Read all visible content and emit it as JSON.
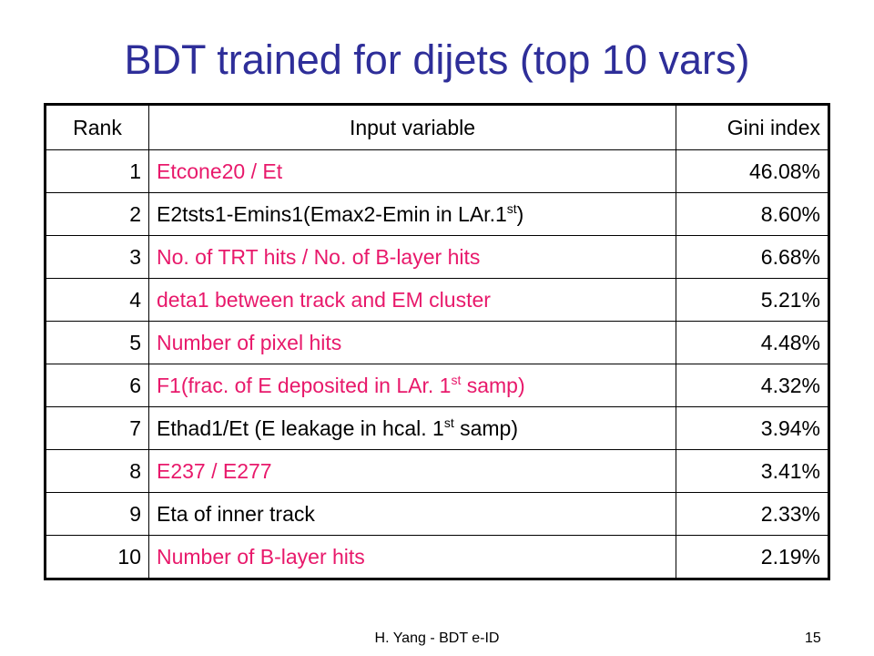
{
  "title": "BDT trained for dijets (top 10 vars)",
  "table": {
    "header": [
      "Rank",
      "Input variable",
      "Gini index"
    ],
    "rows": [
      {
        "rank": "1",
        "variable": [
          {
            "text": "Etcone20 / Et"
          }
        ],
        "gini": "46.08%",
        "color": "#e8196b"
      },
      {
        "rank": "2",
        "variable": [
          {
            "text": "E2tsts1-Emins1(Emax2-Emin in LAr.1"
          },
          {
            "sup": "st"
          },
          {
            "text": ")"
          }
        ],
        "gini": "8.60%",
        "color": "#000000"
      },
      {
        "rank": "3",
        "variable": [
          {
            "text": "No. of TRT hits / No. of B-layer hits"
          }
        ],
        "gini": "6.68%",
        "color": "#e8196b"
      },
      {
        "rank": "4",
        "variable": [
          {
            "text": "deta1 between track and EM cluster"
          }
        ],
        "gini": "5.21%",
        "color": "#e8196b"
      },
      {
        "rank": "5",
        "variable": [
          {
            "text": "Number of pixel hits"
          }
        ],
        "gini": "4.48%",
        "color": "#e8196b"
      },
      {
        "rank": "6",
        "variable": [
          {
            "text": "F1(frac. of E deposited in LAr. 1"
          },
          {
            "sup": "st"
          },
          {
            "text": " samp)"
          }
        ],
        "gini": "4.32%",
        "color": "#e8196b"
      },
      {
        "rank": "7",
        "variable": [
          {
            "text": "Ethad1/Et (E leakage in hcal. 1"
          },
          {
            "sup": "st"
          },
          {
            "text": " samp)"
          }
        ],
        "gini": "3.94%",
        "color": "#000000"
      },
      {
        "rank": "8",
        "variable": [
          {
            "text": "E237 / E277"
          }
        ],
        "gini": "3.41%",
        "color": "#e8196b"
      },
      {
        "rank": "9",
        "variable": [
          {
            "text": "Eta of inner track"
          }
        ],
        "gini": "2.33%",
        "color": "#000000"
      },
      {
        "rank": "10",
        "variable": [
          {
            "text": "Number of B-layer hits"
          }
        ],
        "gini": "2.19%",
        "color": "#e8196b"
      }
    ]
  },
  "footer": {
    "author": "H. Yang - BDT e-ID",
    "page": "15"
  }
}
